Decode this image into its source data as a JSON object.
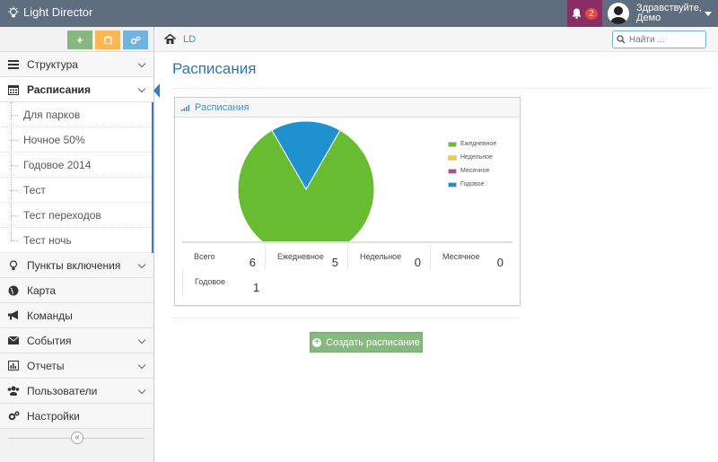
{
  "app": {
    "title": "Light Director"
  },
  "header": {
    "notifications_count": "2",
    "greeting_line1": "Здравствуйте,",
    "greeting_line2": "Демо"
  },
  "sidebar": {
    "menu": [
      {
        "label": "Структура",
        "icon": "sitemap-icon",
        "has_submenu": true
      },
      {
        "label": "Расписания",
        "icon": "calendar-icon",
        "active": true,
        "has_submenu": true
      },
      {
        "label": "Пункты включения",
        "icon": "lightbulb-icon",
        "has_submenu": true
      },
      {
        "label": "Карта",
        "icon": "globe-icon"
      },
      {
        "label": "Команды",
        "icon": "bullhorn-icon"
      },
      {
        "label": "События",
        "icon": "envelope-icon",
        "has_submenu": true
      },
      {
        "label": "Отчеты",
        "icon": "bar-chart-icon",
        "has_submenu": true
      },
      {
        "label": "Пользователи",
        "icon": "users-icon",
        "has_submenu": true
      },
      {
        "label": "Настройки",
        "icon": "cogs-icon"
      }
    ],
    "submenu": [
      "Для парков",
      "Ночное 50%",
      "Годовое 2014",
      "Тест",
      "Тест переходов",
      "Тест ночь"
    ],
    "collapse_symbol": "«"
  },
  "breadcrumbs": {
    "home_icon": "home-icon",
    "current": "LD"
  },
  "search": {
    "placeholder": "Найти ..."
  },
  "page": {
    "title": "Расписания"
  },
  "widget": {
    "title": "Расписания"
  },
  "chart_data": {
    "type": "pie",
    "title": "",
    "slices": [
      {
        "label": "Ежедневное",
        "value": 5,
        "color": "#68bc31"
      },
      {
        "label": "Недельное",
        "value": 0,
        "color": "#eed42f"
      },
      {
        "label": "Месячное",
        "value": 0,
        "color": "#ac4b8e"
      },
      {
        "label": "Годовое",
        "value": 1,
        "color": "#2091cf"
      }
    ],
    "legend_position": "right"
  },
  "stats": [
    {
      "label": "Всего",
      "value": "6"
    },
    {
      "label": "Ежедневное",
      "value": "5"
    },
    {
      "label": "Недельное",
      "value": "0"
    },
    {
      "label": "Месячное",
      "value": "0"
    },
    {
      "label": "Годовое",
      "value": "1"
    }
  ],
  "actions": {
    "create_label": "Создать расписание"
  },
  "colors": {
    "navbar": "#5f6e7f",
    "notifications": "#892e65",
    "accent": "#2679b5",
    "button_green": "#87b87f"
  }
}
